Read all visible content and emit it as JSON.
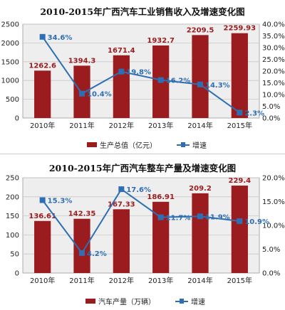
{
  "chart_data": [
    {
      "type": "bar",
      "title": "2010-2015年广西汽车工业销售收入及增速变化图",
      "categories": [
        "2010年",
        "2011年",
        "2012年",
        "2013年",
        "2014年",
        "2015年"
      ],
      "series": [
        {
          "name": "生产总值（亿元）",
          "type": "bar",
          "axis": "left",
          "values": [
            1262.6,
            1394.3,
            1671.4,
            1932.7,
            2209.5,
            2259.93
          ],
          "labels": [
            "1262.6",
            "1394.3",
            "1671.4",
            "1932.7",
            "2209.5",
            "2259.93"
          ]
        },
        {
          "name": "增速",
          "type": "line",
          "axis": "right",
          "values": [
            34.6,
            10.4,
            19.8,
            16.2,
            14.3,
            2.3
          ],
          "labels": [
            "34.6%",
            "10.4%",
            "19.8%",
            "16.2%",
            "14.3%",
            "2.3%"
          ]
        }
      ],
      "left_axis": {
        "min": 0,
        "max": 2500,
        "ticks": [
          "0",
          "500",
          "1000",
          "1500",
          "2000",
          "2500"
        ]
      },
      "right_axis": {
        "min": 0,
        "max": 40,
        "ticks": [
          "0.0%",
          "5.0%",
          "10.0%",
          "15.0%",
          "20.0%",
          "25.0%",
          "30.0%",
          "35.0%",
          "40.0%"
        ]
      },
      "grid": true,
      "legend": "bottom"
    },
    {
      "type": "bar",
      "title": "2010-2015年广西汽车整车产量及增速变化图",
      "categories": [
        "2010年",
        "2011年",
        "2012年",
        "2013年",
        "2014年",
        "2015年"
      ],
      "series": [
        {
          "name": "汽车产量（万辆）",
          "type": "bar",
          "axis": "left",
          "values": [
            136.61,
            142.35,
            167.33,
            186.91,
            209.2,
            229.4
          ],
          "labels": [
            "136.61",
            "142.35",
            "167.33",
            "186.91",
            "209.2",
            "229.4"
          ]
        },
        {
          "name": "增速",
          "type": "line",
          "axis": "right",
          "values": [
            15.3,
            4.2,
            17.6,
            11.7,
            11.9,
            10.9
          ],
          "labels": [
            "15.3%",
            "4.2%",
            "17.6%",
            "11.7%",
            "11.9%",
            "10.9%"
          ]
        }
      ],
      "left_axis": {
        "min": 0,
        "max": 250,
        "ticks": [
          "0",
          "50",
          "100",
          "150",
          "200",
          "250"
        ]
      },
      "right_axis": {
        "min": 0,
        "max": 20,
        "ticks": [
          "0.0%",
          "5.0%",
          "10.0%",
          "15.0%",
          "20.0%"
        ]
      },
      "grid": true,
      "legend": "bottom"
    }
  ],
  "colors": {
    "bar": "#9b1c1e",
    "line": "#2e6fb3",
    "plot_bg": "#eeeeee",
    "grid": "#c8c8c8"
  }
}
